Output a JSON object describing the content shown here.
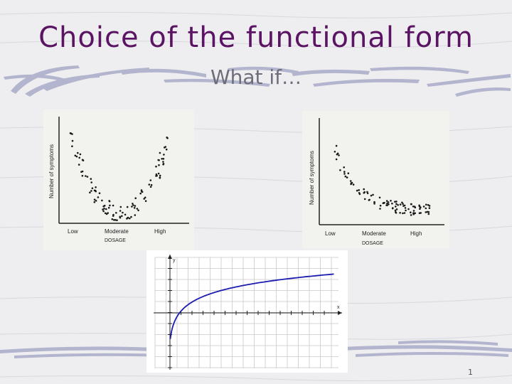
{
  "slide": {
    "title": "Choice of the functional form",
    "subtitle": "What if…",
    "slide_number": "1"
  },
  "plots": [
    {
      "y_axis_label": "Number of symptoms",
      "x_ticks": [
        "Low",
        "Moderate",
        "High"
      ],
      "x_axis_label": "DOSAGE"
    },
    {
      "y_axis_label": "Number of symptoms",
      "x_ticks": [
        "Low",
        "Moderate",
        "High"
      ],
      "x_axis_label": "DOSAGE"
    }
  ],
  "graph": {
    "y_axis_label": "y",
    "x_axis_label": "x",
    "curve_color": "#1c1cb0"
  },
  "colors": {
    "title": "#5a1463",
    "background": "#eeeef0",
    "stripe": "#a9abc9"
  }
}
